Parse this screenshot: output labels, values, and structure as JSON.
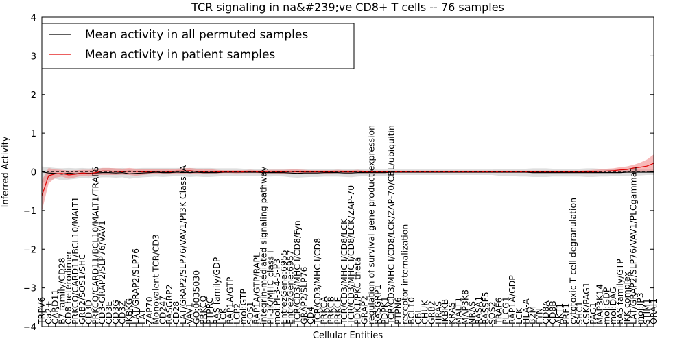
{
  "chart_data": {
    "type": "line",
    "title": "TCR signaling in na&#239;ve CD8+ T cells -- 76 samples",
    "xlabel": "Cellular Entities",
    "ylabel": "Inferred Activity",
    "ylim": [
      -4,
      4
    ],
    "yticks": [
      "−4",
      "−3",
      "−2",
      "−1",
      "0",
      "1",
      "2",
      "3",
      "4"
    ],
    "legend_position": "top-left",
    "colors": {
      "permuted": "#000000",
      "patient": "#e00000",
      "patient_band": "#f08080",
      "permuted_band": "#c8c8c8"
    },
    "categories": [
      "TRPV6",
      "Ca2+",
      "CARD11",
      "B7 family/CD28",
      "CD8 heterodimer",
      "PRKCQ/CARD11/BCL10/MALT1",
      "GRB2/SOS1/SHC",
      "CD3D",
      "PRKCQ/CARD11/BCL10/MALT1/TRAF6",
      "CD3-GRAP2/SLP76/VAV1",
      "CD3E",
      "CD3G",
      "CD3Z",
      "IKBKG",
      "LAT/GRAP2/SLP76",
      "LAT",
      "ZAP70",
      "Monovalent TCR/CD3",
      "CD247",
      "RASGRP2",
      "CD28",
      "LAT/GRAP2/SLP76/VAV1/PI3K Class IA",
      "VAV1",
      "GO:0035030",
      "PRKCQ",
      "PTPRC",
      "RAS family/GDP",
      "LCK",
      "RAP1A/GTP",
      "LCP2",
      "mol:GTP",
      "SOS1",
      "RAP1A/GTP/RAPL",
      "integrin-mediated signaling pathway",
      "PI-3K/MHC class I",
      "mol:PI-3-4-5-P3",
      "EntrezGene:6955",
      "EntrezGene:6957",
      "TCR/CD3/MHC I/CD8/Fyn",
      "GRAP2/SLP76",
      "CD4",
      "TCR/CD3/MHC I/CD8",
      "PRKCA",
      "PRKCB",
      "PRKCE",
      "TCR/CD3/MHC I/CD8/LCK",
      "TCR/CD3/MHC I/CD8/LCK/ZAP-70",
      "PDK1/PKC theta",
      "GRAP2",
      "regulation of survival gene product expression",
      "RASGRP1",
      "PDPK1",
      "TCR/CD3/MHC I/CD8/LCK/ZAP-70/CBL/ubiquitin",
      "PTPN6",
      "receptor internalization",
      "BCL10",
      "CBL",
      "CHUK",
      "GRB2",
      "HRAS",
      "IKBKB",
      "KRAS",
      "MALT1",
      "MAP3K8",
      "NRAS",
      "RASA1",
      "RASSF5",
      "SOS2",
      "TRAF6",
      "PLCG1",
      "RAP1A/GDP",
      "LCK",
      "HLA-A",
      "B2M",
      "FYN",
      "CD8A",
      "CD8B",
      "AKT1",
      "PRF1",
      "cytotoxic T cell degranulation",
      "SHC1",
      "CSK/PAG1",
      "PAG1",
      "MAP3K14",
      "mol:GDP",
      "mol:DAG",
      "RAS family/GTP",
      "IKK complex",
      "LAT/GRAP2/SLP76/VAV1/PLCgamma1",
      "mol:IP3",
      "STIM1",
      "ORAI1"
    ],
    "series": [
      {
        "name": "Mean activity in all permuted samples",
        "values": [
          0.0,
          -0.03,
          -0.04,
          -0.06,
          -0.03,
          -0.05,
          -0.03,
          -0.04,
          -0.03,
          -0.02,
          -0.02,
          -0.03,
          -0.02,
          -0.05,
          -0.04,
          -0.03,
          -0.02,
          -0.01,
          -0.02,
          -0.02,
          -0.01,
          -0.01,
          -0.02,
          -0.01,
          -0.02,
          -0.02,
          -0.02,
          -0.01,
          -0.01,
          -0.01,
          -0.01,
          -0.01,
          -0.01,
          -0.02,
          -0.02,
          -0.02,
          -0.02,
          -0.03,
          -0.04,
          -0.03,
          -0.03,
          -0.03,
          -0.02,
          -0.02,
          -0.02,
          -0.03,
          -0.03,
          -0.02,
          -0.02,
          -0.02,
          -0.02,
          -0.02,
          -0.01,
          -0.01,
          -0.01,
          -0.01,
          -0.01,
          -0.01,
          -0.01,
          -0.01,
          -0.01,
          -0.01,
          -0.01,
          -0.01,
          -0.01,
          -0.01,
          -0.01,
          -0.01,
          -0.01,
          -0.01,
          -0.01,
          -0.01,
          -0.01,
          -0.02,
          -0.02,
          -0.02,
          -0.02,
          -0.02,
          -0.02,
          -0.02,
          -0.02,
          -0.02,
          -0.02,
          -0.02,
          -0.02,
          -0.02,
          -0.02,
          -0.01,
          -0.01,
          -0.01,
          -0.01,
          -0.01
        ]
      },
      {
        "name": "Mean activity in patient samples",
        "values": [
          -0.62,
          -0.1,
          -0.05,
          -0.04,
          -0.08,
          -0.06,
          -0.03,
          -0.05,
          -0.02,
          0.02,
          0.02,
          0.01,
          0.0,
          0.02,
          0.01,
          0.0,
          0.0,
          0.01,
          0.01,
          0.0,
          0.02,
          0.02,
          0.03,
          0.01,
          0.0,
          0.01,
          0.0,
          0.0,
          0.0,
          0.0,
          0.0,
          0.01,
          0.0,
          0.0,
          0.01,
          0.0,
          0.0,
          0.01,
          0.0,
          0.0,
          0.0,
          0.0,
          0.0,
          0.0,
          0.01,
          0.0,
          0.0,
          0.01,
          0.0,
          0.0,
          0.0,
          0.0,
          0.0,
          0.0,
          0.0,
          0.0,
          0.0,
          0.0,
          0.0,
          0.0,
          0.0,
          0.0,
          0.0,
          0.0,
          0.0,
          0.0,
          0.0,
          0.0,
          0.0,
          0.0,
          0.0,
          0.0,
          0.0,
          0.0,
          0.0,
          0.0,
          0.0,
          0.0,
          0.0,
          0.0,
          0.0,
          0.0,
          0.0,
          0.01,
          0.02,
          0.03,
          0.05,
          0.06,
          0.1,
          0.12,
          0.15,
          0.22
        ]
      }
    ],
    "patient_band": {
      "lower": [
        -1.02,
        -0.3,
        -0.15,
        -0.12,
        -0.18,
        -0.14,
        -0.1,
        -0.12,
        -0.08,
        -0.08,
        -0.08,
        -0.08,
        -0.07,
        -0.08,
        -0.1,
        -0.08,
        -0.06,
        -0.05,
        -0.06,
        -0.05,
        -0.04,
        -0.05,
        -0.04,
        -0.06,
        -0.05,
        -0.04,
        -0.04,
        -0.03,
        -0.03,
        -0.04,
        -0.03,
        -0.03,
        -0.03,
        -0.04,
        -0.04,
        -0.04,
        -0.05,
        -0.05,
        -0.05,
        -0.04,
        -0.04,
        -0.03,
        -0.04,
        -0.04,
        -0.03,
        -0.03,
        -0.04,
        -0.03,
        -0.03,
        -0.03,
        -0.03,
        -0.03,
        -0.02,
        -0.02,
        -0.02,
        -0.02,
        -0.02,
        -0.02,
        -0.02,
        -0.02,
        -0.02,
        -0.02,
        -0.02,
        -0.02,
        -0.02,
        -0.02,
        -0.02,
        -0.02,
        -0.02,
        -0.02,
        -0.02,
        -0.02,
        -0.02,
        -0.02,
        -0.02,
        -0.02,
        -0.02,
        -0.02,
        -0.02,
        -0.02,
        -0.02,
        -0.02,
        -0.03,
        -0.03,
        -0.02,
        -0.03,
        -0.02,
        -0.02,
        -0.02,
        -0.01,
        -0.01,
        0.0
      ],
      "upper": [
        -0.22,
        0.1,
        0.06,
        0.05,
        0.03,
        0.04,
        0.05,
        0.05,
        0.06,
        0.1,
        0.1,
        0.09,
        0.08,
        0.1,
        0.08,
        0.07,
        0.07,
        0.08,
        0.08,
        0.06,
        0.08,
        0.09,
        0.1,
        0.08,
        0.06,
        0.07,
        0.05,
        0.04,
        0.04,
        0.04,
        0.04,
        0.05,
        0.04,
        0.04,
        0.05,
        0.05,
        0.05,
        0.06,
        0.06,
        0.05,
        0.04,
        0.04,
        0.04,
        0.04,
        0.05,
        0.04,
        0.04,
        0.05,
        0.03,
        0.03,
        0.03,
        0.03,
        0.03,
        0.03,
        0.03,
        0.03,
        0.03,
        0.03,
        0.03,
        0.03,
        0.03,
        0.03,
        0.03,
        0.03,
        0.03,
        0.03,
        0.03,
        0.03,
        0.03,
        0.03,
        0.03,
        0.03,
        0.03,
        0.03,
        0.03,
        0.03,
        0.03,
        0.03,
        0.03,
        0.03,
        0.03,
        0.04,
        0.05,
        0.06,
        0.08,
        0.09,
        0.12,
        0.14,
        0.18,
        0.24,
        0.32,
        0.45
      ]
    },
    "permuted_band": {
      "lower": [
        -0.3,
        -0.22,
        -0.18,
        -0.22,
        -0.2,
        -0.18,
        -0.16,
        -0.17,
        -0.15,
        -0.14,
        -0.14,
        -0.15,
        -0.14,
        -0.18,
        -0.16,
        -0.14,
        -0.13,
        -0.12,
        -0.13,
        -0.12,
        -0.11,
        -0.12,
        -0.13,
        -0.12,
        -0.13,
        -0.13,
        -0.12,
        -0.11,
        -0.1,
        -0.1,
        -0.1,
        -0.1,
        -0.11,
        -0.12,
        -0.12,
        -0.11,
        -0.12,
        -0.14,
        -0.15,
        -0.14,
        -0.13,
        -0.13,
        -0.12,
        -0.12,
        -0.12,
        -0.13,
        -0.14,
        -0.12,
        -0.11,
        -0.1,
        -0.1,
        -0.1,
        -0.08,
        -0.08,
        -0.08,
        -0.08,
        -0.08,
        -0.08,
        -0.08,
        -0.08,
        -0.08,
        -0.08,
        -0.08,
        -0.08,
        -0.08,
        -0.08,
        -0.08,
        -0.08,
        -0.1,
        -0.1,
        -0.11,
        -0.12,
        -0.12,
        -0.13,
        -0.13,
        -0.13,
        -0.12,
        -0.12,
        -0.12,
        -0.12,
        -0.12,
        -0.13,
        -0.13,
        -0.12,
        -0.12,
        -0.11,
        -0.1,
        -0.1,
        -0.09,
        -0.09,
        -0.08,
        -0.08
      ],
      "upper": [
        0.14,
        0.12,
        0.1,
        0.09,
        0.1,
        0.09,
        0.1,
        0.09,
        0.1,
        0.1,
        0.1,
        0.09,
        0.1,
        0.08,
        0.09,
        0.1,
        0.1,
        0.1,
        0.1,
        0.1,
        0.1,
        0.1,
        0.1,
        0.1,
        0.1,
        0.1,
        0.09,
        0.09,
        0.09,
        0.09,
        0.08,
        0.08,
        0.08,
        0.08,
        0.08,
        0.08,
        0.08,
        0.08,
        0.08,
        0.08,
        0.08,
        0.08,
        0.08,
        0.08,
        0.08,
        0.08,
        0.08,
        0.07,
        0.07,
        0.07,
        0.06,
        0.06,
        0.06,
        0.06,
        0.06,
        0.06,
        0.06,
        0.06,
        0.06,
        0.06,
        0.06,
        0.06,
        0.06,
        0.06,
        0.06,
        0.06,
        0.06,
        0.06,
        0.07,
        0.07,
        0.07,
        0.08,
        0.08,
        0.09,
        0.09,
        0.09,
        0.08,
        0.08,
        0.08,
        0.08,
        0.08,
        0.09,
        0.09,
        0.08,
        0.08,
        0.07,
        0.07,
        0.07,
        0.07,
        0.07,
        0.06,
        0.06
      ]
    }
  }
}
